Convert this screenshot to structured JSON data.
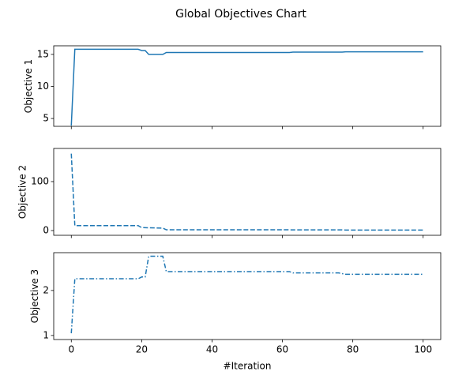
{
  "title": "Global Objectives Chart",
  "chart_data": [
    {
      "type": "line",
      "ylabel": "Objective 1",
      "color": "#1f77b4",
      "linestyle": "solid",
      "xtick_labels": false,
      "x": [
        0,
        1,
        19,
        20,
        21,
        22,
        26,
        27,
        62,
        63,
        77,
        78,
        100
      ],
      "values": [
        3.9,
        15.8,
        15.8,
        15.6,
        15.6,
        15.0,
        15.0,
        15.3,
        15.3,
        15.35,
        15.35,
        15.4,
        15.4
      ],
      "xlim": [
        -5,
        105
      ],
      "xticks": [
        0,
        20,
        40,
        60,
        80,
        100
      ],
      "ylim": [
        3.78,
        16.34
      ],
      "yticks": [
        5,
        10,
        15
      ]
    },
    {
      "type": "line",
      "ylabel": "Objective 2",
      "color": "#1f77b4",
      "linestyle": "dashed",
      "xtick_labels": false,
      "x": [
        0,
        1,
        19,
        20,
        26,
        27,
        62,
        63,
        77,
        78,
        100
      ],
      "values": [
        157,
        10,
        10,
        6,
        5,
        1.5,
        1.5,
        1.3,
        1.3,
        1.0,
        1.0
      ],
      "xlim": [
        -5,
        105
      ],
      "xticks": [
        0,
        20,
        40,
        60,
        80,
        100
      ],
      "ylim": [
        -9.7,
        167.7
      ],
      "yticks": [
        0,
        100
      ]
    },
    {
      "type": "line",
      "ylabel": "Objective 3",
      "xlabel": "#Iteration",
      "color": "#1f77b4",
      "linestyle": "dashdot",
      "xtick_labels": true,
      "x": [
        0,
        1,
        19,
        20,
        21,
        22,
        26,
        27,
        62,
        63,
        76,
        78,
        100
      ],
      "values": [
        1.05,
        2.26,
        2.26,
        2.3,
        2.3,
        2.76,
        2.76,
        2.42,
        2.42,
        2.39,
        2.39,
        2.36,
        2.36
      ],
      "xlim": [
        -5,
        105
      ],
      "xticks": [
        0,
        20,
        40,
        60,
        80,
        100
      ],
      "ylim": [
        0.91,
        2.84
      ],
      "yticks": [
        1,
        2
      ]
    }
  ]
}
